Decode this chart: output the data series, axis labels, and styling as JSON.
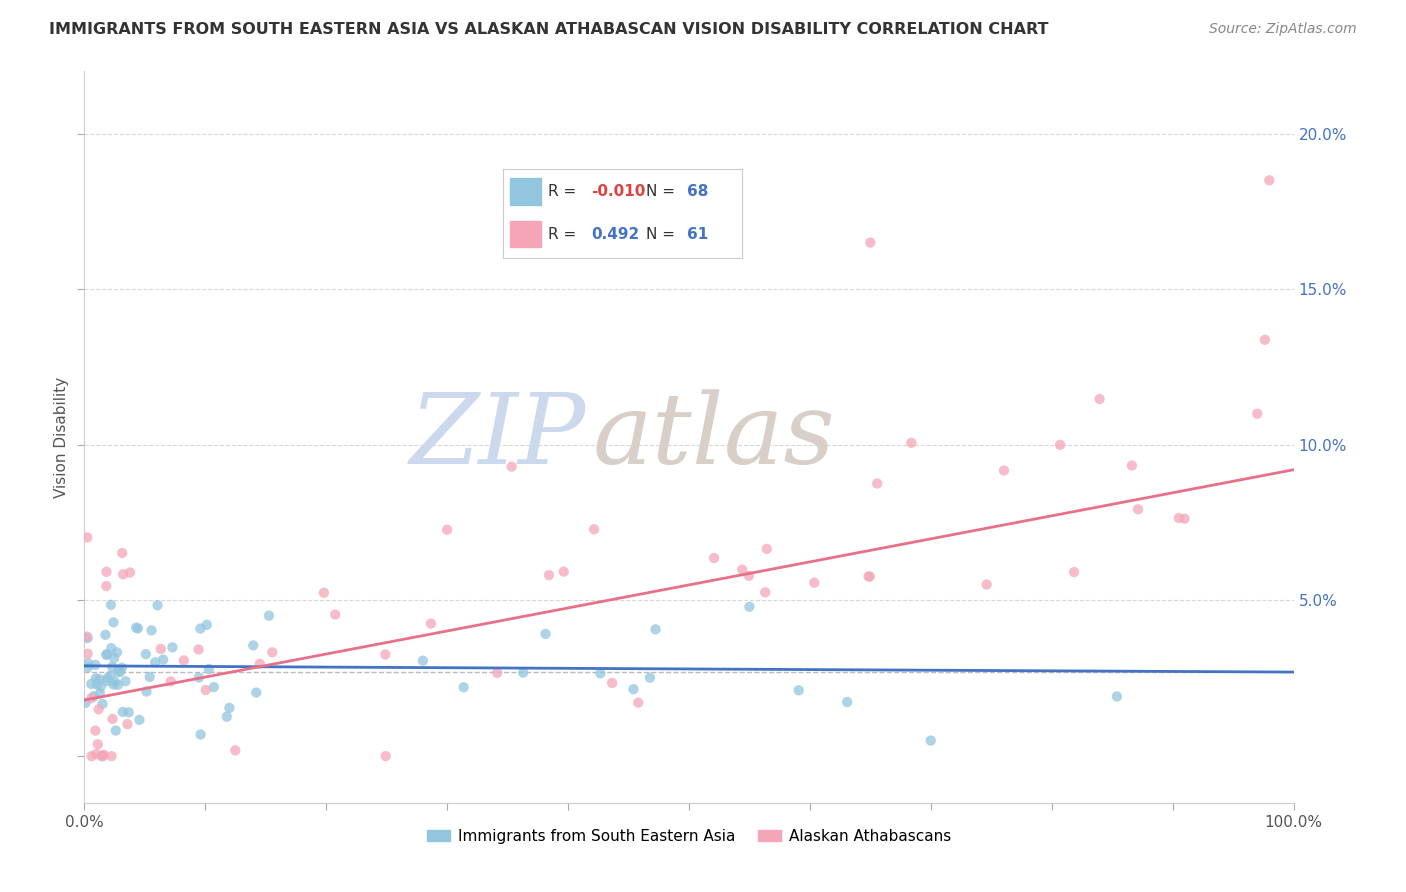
{
  "title": "IMMIGRANTS FROM SOUTH EASTERN ASIA VS ALASKAN ATHABASCAN VISION DISABILITY CORRELATION CHART",
  "source": "Source: ZipAtlas.com",
  "ylabel": "Vision Disability",
  "legend_blue_r": "-0.010",
  "legend_blue_n": "68",
  "legend_pink_r": "0.492",
  "legend_pink_n": "61",
  "legend_blue_label": "Immigrants from South Eastern Asia",
  "legend_pink_label": "Alaskan Athabascans",
  "blue_color": "#92c5de",
  "pink_color": "#f4a6b8",
  "blue_line_color": "#4472c4",
  "pink_line_color": "#e8708a",
  "watermark_zip": "ZIP",
  "watermark_atlas": "atlas",
  "background_color": "#ffffff",
  "grid_color": "#d8d8d8",
  "ytick_color": "#4472c4",
  "text_color": "#333333",
  "source_color": "#888888",
  "xlim": [
    0.0,
    1.0
  ],
  "ylim": [
    -0.015,
    0.22
  ],
  "yticks": [
    0.0,
    0.05,
    0.1,
    0.15,
    0.2
  ],
  "ytick_labels": [
    "",
    "5.0%",
    "10.0%",
    "15.0%",
    "20.0%"
  ],
  "xticks": [
    0.0,
    0.1,
    0.2,
    0.3,
    0.4,
    0.5,
    0.6,
    0.7,
    0.8,
    0.9,
    1.0
  ],
  "blue_trend_x": [
    0.0,
    1.0
  ],
  "blue_trend_y": [
    0.029,
    0.027
  ],
  "pink_trend_x": [
    0.0,
    1.0
  ],
  "pink_trend_y": [
    0.018,
    0.092
  ],
  "dashed_line_y": 0.027
}
